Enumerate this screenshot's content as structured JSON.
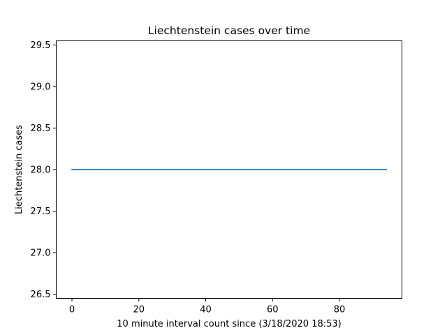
{
  "chart_data": {
    "type": "line",
    "title": "Liechtenstein cases over time",
    "xlabel": "10 minute interval count since (3/18/2020 18:53)",
    "ylabel": "Liechtenstein cases",
    "xlim": [
      -4.7,
      98.7
    ],
    "ylim": [
      26.45,
      29.55
    ],
    "xticks": [
      0,
      20,
      40,
      60,
      80
    ],
    "yticks": [
      26.5,
      27.0,
      27.5,
      28.0,
      28.5,
      29.0,
      29.5
    ],
    "x_tick_labels": [
      "0",
      "20",
      "40",
      "60",
      "80"
    ],
    "y_tick_labels": [
      "26.5",
      "27.0",
      "27.5",
      "28.0",
      "28.5",
      "29.0",
      "29.5"
    ],
    "grid": false,
    "colors": {
      "series": "#1f77b4",
      "axes": "#000000"
    },
    "series": [
      {
        "x": [
          0,
          94
        ],
        "values": [
          28,
          28
        ]
      }
    ]
  }
}
